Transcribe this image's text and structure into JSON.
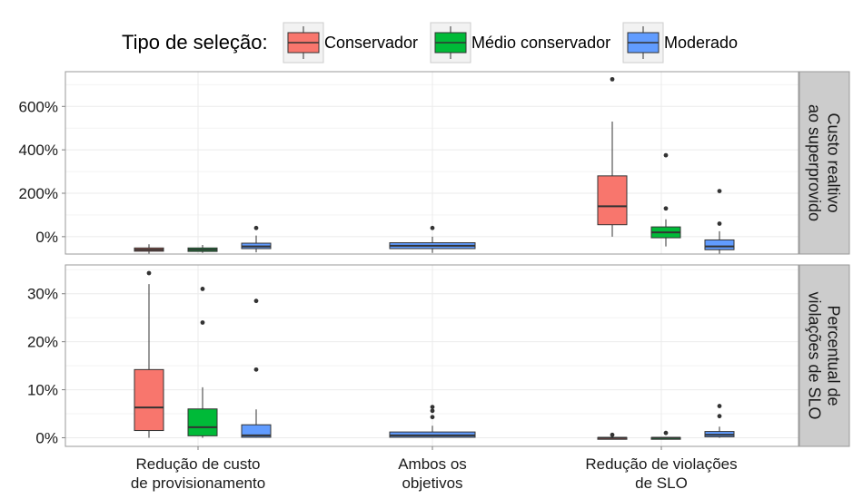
{
  "chart_data": {
    "type": "box",
    "legend": {
      "title": "Tipo de seleção:",
      "position": "top",
      "entries": [
        {
          "name": "Conservador",
          "color": "#F8766D"
        },
        {
          "name": "Médio conservador",
          "color": "#00BA38"
        },
        {
          "name": "Moderado",
          "color": "#619CFF"
        }
      ]
    },
    "categories": [
      [
        "Redução de custo",
        "de provisionamento"
      ],
      [
        "Ambos os",
        "objetivos"
      ],
      [
        "Redução de violações",
        "de SLO"
      ]
    ],
    "grid": true,
    "facets": [
      {
        "label": [
          "Custo realtivo",
          "ao superprovido"
        ],
        "ylim": [
          -80,
          760
        ],
        "yticks": [
          0,
          200,
          400,
          600
        ],
        "ytick_labels": [
          "0%",
          "200%",
          "400%",
          "600%"
        ],
        "boxes": [
          {
            "category": 0,
            "series": "Conservador",
            "whisker_low": -78,
            "q1": -67,
            "median": -60,
            "q3": -52,
            "whisker_high": -35,
            "outliers": []
          },
          {
            "category": 0,
            "series": "Médio conservador",
            "whisker_low": -75,
            "q1": -68,
            "median": -60,
            "q3": -52,
            "whisker_high": -38,
            "outliers": []
          },
          {
            "category": 0,
            "series": "Moderado",
            "whisker_low": -72,
            "q1": -55,
            "median": -45,
            "q3": -30,
            "whisker_high": 5,
            "outliers": [
              40
            ]
          },
          {
            "category": 1,
            "series": "Moderado",
            "whisker_low": -75,
            "q1": -55,
            "median": -42,
            "q3": -28,
            "whisker_high": 0,
            "outliers": [
              40
            ]
          },
          {
            "category": 2,
            "series": "Conservador",
            "whisker_low": 0,
            "q1": 55,
            "median": 140,
            "q3": 280,
            "whisker_high": 530,
            "outliers": [
              725
            ]
          },
          {
            "category": 2,
            "series": "Médio conservador",
            "whisker_low": -45,
            "q1": -5,
            "median": 20,
            "q3": 45,
            "whisker_high": 80,
            "outliers": [
              130,
              375
            ]
          },
          {
            "category": 2,
            "series": "Moderado",
            "whisker_low": -80,
            "q1": -60,
            "median": -45,
            "q3": -15,
            "whisker_high": 25,
            "outliers": [
              60,
              210
            ]
          }
        ]
      },
      {
        "label": [
          "Percentual de",
          "violações de SLO"
        ],
        "ylim": [
          -1.8,
          36
        ],
        "yticks": [
          0,
          10,
          20,
          30
        ],
        "ytick_labels": [
          "0%",
          "10%",
          "20%",
          "30%"
        ],
        "boxes": [
          {
            "category": 0,
            "series": "Conservador",
            "whisker_low": 0,
            "q1": 1.5,
            "median": 6.3,
            "q3": 14.2,
            "whisker_high": 32,
            "outliers": [
              34.3
            ]
          },
          {
            "category": 0,
            "series": "Médio conservador",
            "whisker_low": 0,
            "q1": 0.4,
            "median": 2.2,
            "q3": 6,
            "whisker_high": 10.5,
            "outliers": [
              24,
              31
            ]
          },
          {
            "category": 0,
            "series": "Moderado",
            "whisker_low": 0,
            "q1": 0.1,
            "median": 0.5,
            "q3": 2.7,
            "whisker_high": 5.9,
            "outliers": [
              14.2,
              28.5
            ]
          },
          {
            "category": 1,
            "series": "Moderado",
            "whisker_low": 0,
            "q1": 0.1,
            "median": 0.5,
            "q3": 1.2,
            "whisker_high": 2.5,
            "outliers": [
              4.3,
              5.6,
              6.4
            ]
          },
          {
            "category": 2,
            "series": "Conservador",
            "whisker_low": 0,
            "q1": 0,
            "median": 0,
            "q3": 0.05,
            "whisker_high": 0.1,
            "outliers": [
              0.6
            ]
          },
          {
            "category": 2,
            "series": "Médio conservador",
            "whisker_low": 0,
            "q1": 0,
            "median": 0,
            "q3": 0.05,
            "whisker_high": 0.1,
            "outliers": [
              1
            ]
          },
          {
            "category": 2,
            "series": "Moderado",
            "whisker_low": 0,
            "q1": 0.2,
            "median": 0.6,
            "q3": 1.3,
            "whisker_high": 2.3,
            "outliers": [
              4.5,
              6.6
            ]
          }
        ]
      }
    ]
  }
}
